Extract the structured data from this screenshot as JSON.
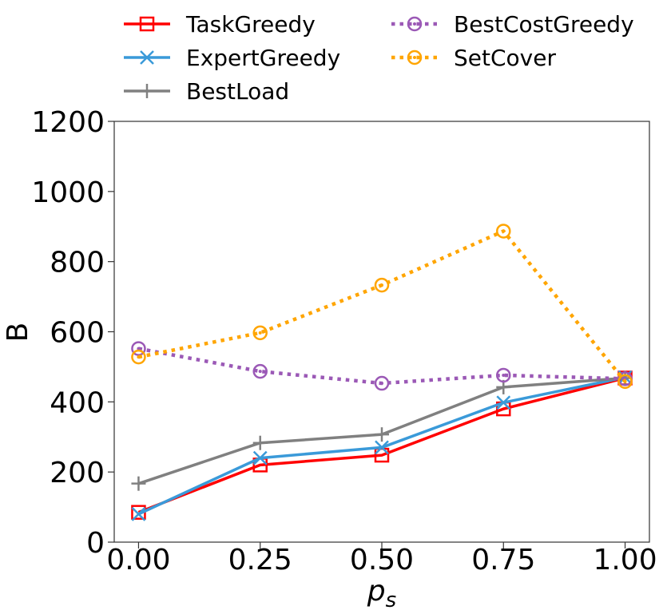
{
  "chart_data": {
    "type": "line",
    "title": "",
    "xlabel": "p",
    "xlabel_subscript": "s",
    "ylabel": "B",
    "x": [
      0.0,
      0.25,
      0.5,
      0.75,
      1.0
    ],
    "x_tick_labels": [
      "0.00",
      "0.25",
      "0.50",
      "0.75",
      "1.00"
    ],
    "y_ticks": [
      0,
      200,
      400,
      600,
      800,
      1000,
      1200
    ],
    "y_tick_labels": [
      "0",
      "200",
      "400",
      "600",
      "800",
      "1000",
      "1200"
    ],
    "xlim": [
      -0.05,
      1.05
    ],
    "ylim": [
      0,
      1200
    ],
    "grid": false,
    "legend_position": "top, outside plot, two columns",
    "series": [
      {
        "name": "TaskGreedy",
        "color": "#ff0000",
        "marker": "square",
        "linestyle": "solid",
        "values": [
          85,
          220,
          248,
          380,
          468
        ]
      },
      {
        "name": "ExpertGreedy",
        "color": "#3a9ad9",
        "marker": "x",
        "linestyle": "solid",
        "values": [
          80,
          240,
          270,
          398,
          470
        ]
      },
      {
        "name": "BestLoad",
        "color": "#808080",
        "marker": "plus",
        "linestyle": "solid",
        "values": [
          167,
          283,
          307,
          442,
          468
        ]
      },
      {
        "name": "BestCostGreedy",
        "color": "#9b59b6",
        "marker": "circle-dot",
        "linestyle": "dotted",
        "values": [
          552,
          487,
          453,
          476,
          466
        ]
      },
      {
        "name": "SetCover",
        "color": "#ffa500",
        "marker": "circle-dot",
        "linestyle": "dotted",
        "values": [
          528,
          597,
          733,
          887,
          458
        ]
      }
    ]
  }
}
